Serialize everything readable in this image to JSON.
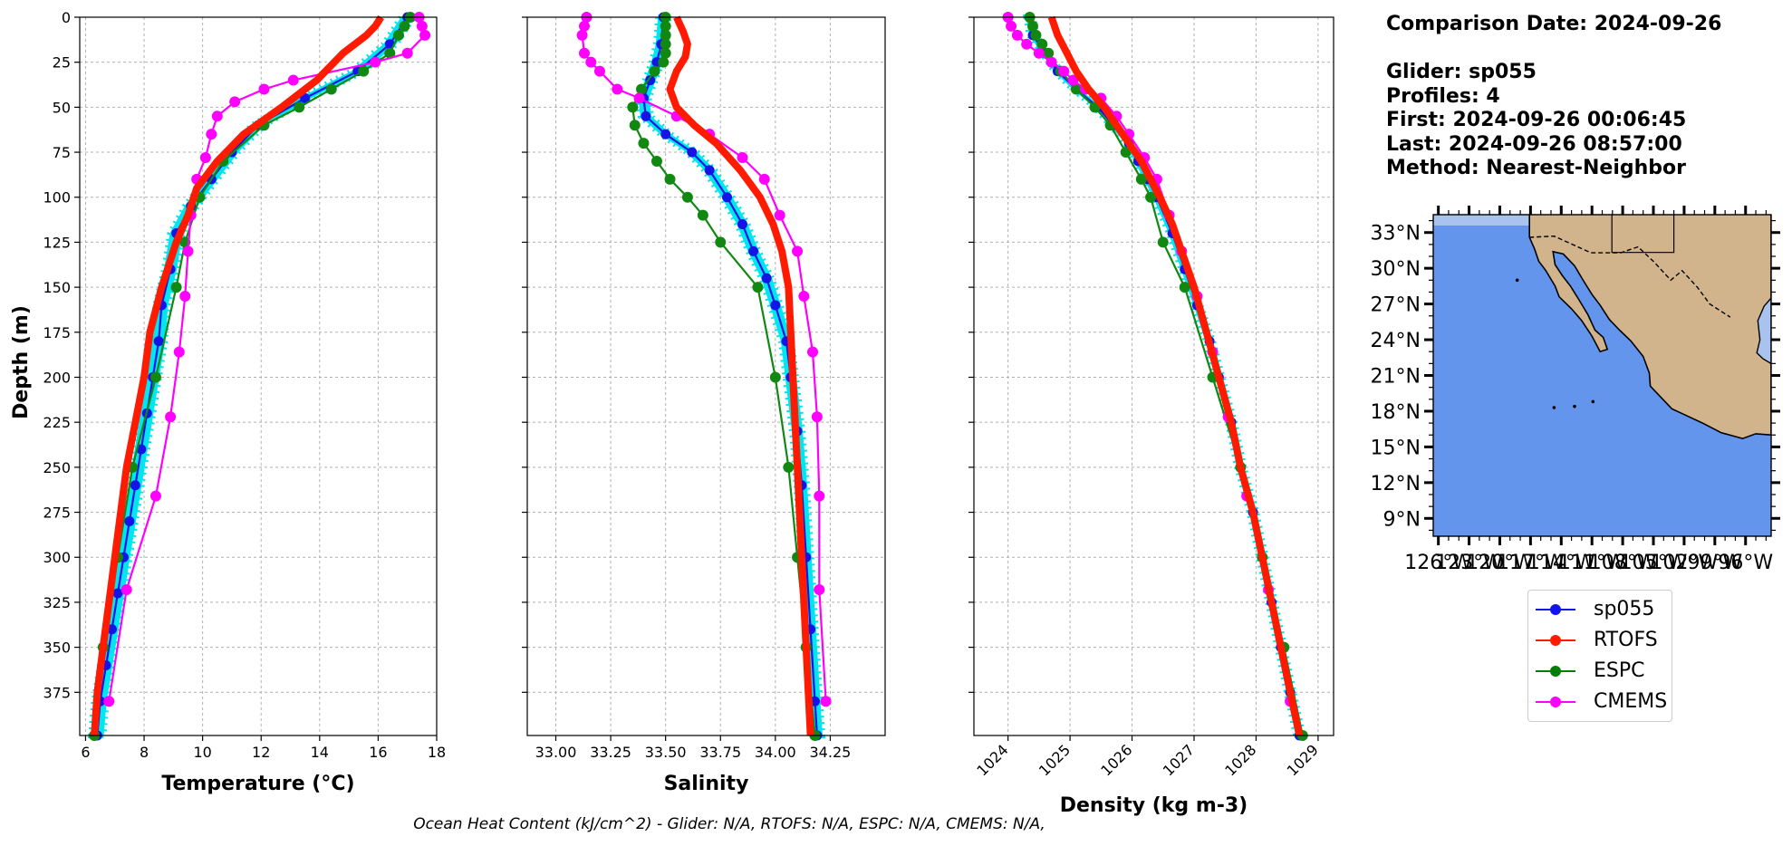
{
  "info": {
    "comparison_date": "Comparison Date: 2024-09-26",
    "glider": "Glider: sp055",
    "profiles": "Profiles: 4",
    "first": "First: 2024-09-26 00:06:45",
    "last": "Last: 2024-09-26 08:57:00",
    "method": "Method: Nearest-Neighbor"
  },
  "footer": "Ocean Heat Content (kJ/cm^2) - Glider: N/A,  RTOFS: N/A,  ESPC: N/A,  CMEMS: N/A,",
  "legend": [
    {
      "label": "sp055",
      "color": "#1414e6"
    },
    {
      "label": "RTOFS",
      "color": "#ff1a00"
    },
    {
      "label": "ESPC",
      "color": "#007f00"
    },
    {
      "label": "CMEMS",
      "color": "#ff00ff"
    }
  ],
  "colors": {
    "glider": "#1414e6",
    "glider_band": "#00e5ee",
    "rtofs": "#ff1a00",
    "espc": "#118811",
    "cmems": "#ff00ff",
    "ocean": "#6495ed",
    "land": "#d2b48c",
    "shelf": "#a8c4ee"
  },
  "chart_data": [
    {
      "type": "line",
      "xlabel": "Temperature (°C)",
      "ylabel": "Depth (m)",
      "xlim": [
        5.8,
        18.0
      ],
      "ylim": [
        399,
        0
      ],
      "xticks": [
        6,
        8,
        10,
        12,
        14,
        16,
        18
      ],
      "yticks": [
        0,
        25,
        50,
        75,
        100,
        125,
        150,
        175,
        200,
        225,
        250,
        275,
        300,
        325,
        350,
        375
      ],
      "grid": true,
      "series": [
        {
          "name": "sp055",
          "depth": [
            0,
            15,
            30,
            45,
            60,
            75,
            90,
            105,
            120,
            140,
            160,
            180,
            200,
            220,
            240,
            260,
            280,
            300,
            320,
            340,
            360,
            380,
            399
          ],
          "values": [
            17.0,
            16.4,
            15.3,
            13.5,
            11.9,
            11.0,
            10.3,
            9.6,
            9.1,
            8.9,
            8.6,
            8.5,
            8.3,
            8.1,
            7.9,
            7.7,
            7.5,
            7.3,
            7.1,
            6.9,
            6.7,
            6.5,
            6.4
          ]
        },
        {
          "name": "RTOFS",
          "depth": [
            0,
            5,
            10,
            20,
            35,
            50,
            65,
            80,
            95,
            110,
            125,
            150,
            175,
            200,
            225,
            250,
            275,
            300,
            325,
            350,
            375,
            399
          ],
          "values": [
            16.1,
            15.9,
            15.6,
            14.8,
            13.9,
            12.7,
            11.4,
            10.5,
            9.8,
            9.5,
            9.1,
            8.6,
            8.2,
            8.0,
            7.7,
            7.4,
            7.2,
            7.0,
            6.8,
            6.6,
            6.4,
            6.3
          ]
        },
        {
          "name": "ESPC",
          "depth": [
            0,
            5,
            10,
            20,
            30,
            40,
            50,
            60,
            80,
            100,
            125,
            150,
            200,
            250,
            300,
            350,
            399
          ],
          "values": [
            17.1,
            16.9,
            16.7,
            16.4,
            15.5,
            14.4,
            13.3,
            12.1,
            10.7,
            9.9,
            9.4,
            9.1,
            8.4,
            7.6,
            7.1,
            6.6,
            6.3
          ]
        },
        {
          "name": "CMEMS",
          "depth": [
            0,
            5,
            10,
            20,
            25,
            35,
            40,
            47,
            55,
            65,
            78,
            90,
            110,
            130,
            155,
            186,
            222,
            266,
            318,
            380
          ],
          "values": [
            17.4,
            17.5,
            17.6,
            17.0,
            15.9,
            13.1,
            12.1,
            11.1,
            10.5,
            10.3,
            10.1,
            9.8,
            9.6,
            9.5,
            9.4,
            9.2,
            8.9,
            8.4,
            7.4,
            6.8
          ]
        }
      ]
    },
    {
      "type": "line",
      "xlabel": "Salinity",
      "ylabel": "",
      "xlim": [
        32.87,
        34.5
      ],
      "ylim": [
        399,
        0
      ],
      "xticks": [
        33.0,
        33.25,
        33.5,
        33.75,
        34.0,
        34.25
      ],
      "xtick_labels": [
        "33.00",
        "33.25",
        "33.50",
        "33.75",
        "34.00",
        "34.25"
      ],
      "grid": true,
      "series": [
        {
          "name": "sp055",
          "depth": [
            0,
            15,
            25,
            35,
            45,
            55,
            65,
            75,
            85,
            100,
            115,
            130,
            145,
            160,
            180,
            200,
            230,
            260,
            300,
            340,
            380,
            399
          ],
          "values": [
            33.49,
            33.48,
            33.46,
            33.43,
            33.4,
            33.41,
            33.5,
            33.62,
            33.7,
            33.78,
            33.85,
            33.9,
            33.96,
            34.0,
            34.05,
            34.07,
            34.1,
            34.12,
            34.14,
            34.16,
            34.18,
            34.19
          ]
        },
        {
          "name": "RTOFS",
          "depth": [
            0,
            8,
            15,
            22,
            30,
            40,
            50,
            60,
            70,
            85,
            100,
            115,
            130,
            150,
            175,
            200,
            250,
            300,
            350,
            399
          ],
          "values": [
            33.55,
            33.58,
            33.6,
            33.59,
            33.55,
            33.52,
            33.55,
            33.63,
            33.73,
            33.84,
            33.93,
            33.99,
            34.03,
            34.06,
            34.07,
            34.08,
            34.1,
            34.12,
            34.14,
            34.16
          ]
        },
        {
          "name": "ESPC",
          "depth": [
            0,
            5,
            10,
            15,
            20,
            25,
            30,
            40,
            50,
            60,
            70,
            80,
            90,
            100,
            110,
            125,
            150,
            200,
            250,
            300,
            350,
            399
          ],
          "values": [
            33.5,
            33.5,
            33.5,
            33.5,
            33.5,
            33.49,
            33.45,
            33.39,
            33.35,
            33.36,
            33.4,
            33.46,
            33.52,
            33.6,
            33.67,
            33.75,
            33.92,
            34.0,
            34.06,
            34.1,
            34.14,
            34.18
          ]
        },
        {
          "name": "CMEMS",
          "depth": [
            0,
            5,
            10,
            20,
            25,
            30,
            40,
            45,
            55,
            65,
            78,
            90,
            110,
            130,
            155,
            186,
            222,
            266,
            318,
            380
          ],
          "values": [
            33.14,
            33.13,
            33.12,
            33.13,
            33.16,
            33.2,
            33.28,
            33.38,
            33.55,
            33.7,
            33.85,
            33.95,
            34.02,
            34.1,
            34.13,
            34.17,
            34.19,
            34.2,
            34.2,
            34.23
          ]
        }
      ]
    },
    {
      "type": "line",
      "xlabel": "Density (kg m-3)",
      "ylabel": "",
      "xlim": [
        1023.45,
        1029.25
      ],
      "ylim": [
        399,
        0
      ],
      "xticks": [
        1024,
        1025,
        1026,
        1027,
        1028,
        1029
      ],
      "grid": true,
      "series": [
        {
          "name": "sp055",
          "depth": [
            0,
            10,
            20,
            30,
            40,
            50,
            60,
            70,
            80,
            90,
            100,
            120,
            140,
            160,
            180,
            200,
            225,
            250,
            275,
            300,
            325,
            350,
            375,
            399
          ],
          "values": [
            1024.35,
            1024.4,
            1024.6,
            1024.8,
            1025.1,
            1025.45,
            1025.7,
            1025.95,
            1026.1,
            1026.25,
            1026.4,
            1026.65,
            1026.85,
            1027.05,
            1027.25,
            1027.4,
            1027.6,
            1027.75,
            1027.95,
            1028.1,
            1028.25,
            1028.4,
            1028.55,
            1028.7
          ]
        },
        {
          "name": "RTOFS",
          "depth": [
            0,
            10,
            20,
            30,
            40,
            50,
            60,
            70,
            80,
            90,
            100,
            115,
            130,
            150,
            175,
            200,
            225,
            250,
            275,
            300,
            325,
            350,
            375,
            399
          ],
          "values": [
            1024.7,
            1024.8,
            1024.95,
            1025.1,
            1025.3,
            1025.55,
            1025.75,
            1025.95,
            1026.15,
            1026.3,
            1026.45,
            1026.65,
            1026.8,
            1027.0,
            1027.2,
            1027.4,
            1027.6,
            1027.75,
            1027.95,
            1028.1,
            1028.25,
            1028.4,
            1028.55,
            1028.7
          ]
        },
        {
          "name": "ESPC",
          "depth": [
            0,
            5,
            10,
            15,
            20,
            30,
            40,
            50,
            60,
            75,
            90,
            100,
            125,
            150,
            200,
            250,
            300,
            350,
            399
          ],
          "values": [
            1024.35,
            1024.4,
            1024.45,
            1024.55,
            1024.65,
            1024.85,
            1025.1,
            1025.4,
            1025.65,
            1025.9,
            1026.15,
            1026.3,
            1026.5,
            1026.85,
            1027.3,
            1027.75,
            1028.1,
            1028.45,
            1028.75
          ]
        },
        {
          "name": "CMEMS",
          "depth": [
            0,
            5,
            10,
            15,
            20,
            25,
            30,
            35,
            40,
            45,
            55,
            65,
            78,
            90,
            110,
            130,
            155,
            186,
            222,
            266,
            318,
            380
          ],
          "values": [
            1024.0,
            1024.05,
            1024.15,
            1024.3,
            1024.5,
            1024.7,
            1024.9,
            1025.05,
            1025.25,
            1025.5,
            1025.75,
            1025.95,
            1026.2,
            1026.4,
            1026.6,
            1026.8,
            1027.05,
            1027.3,
            1027.55,
            1027.85,
            1028.2,
            1028.55
          ]
        }
      ]
    }
  ],
  "map": {
    "lat_labels": [
      "33°N",
      "30°N",
      "27°N",
      "24°N",
      "21°N",
      "18°N",
      "15°N",
      "12°N",
      "9°N"
    ],
    "lon_labels": [
      "126°W",
      "123°W",
      "120°W",
      "117°W",
      "114°W",
      "111°W",
      "108°W",
      "105°W",
      "102°W",
      "99°W",
      "96°W"
    ],
    "lat_range": [
      7.5,
      34.5
    ],
    "lon_range": [
      -126.5,
      -93.5
    ]
  }
}
